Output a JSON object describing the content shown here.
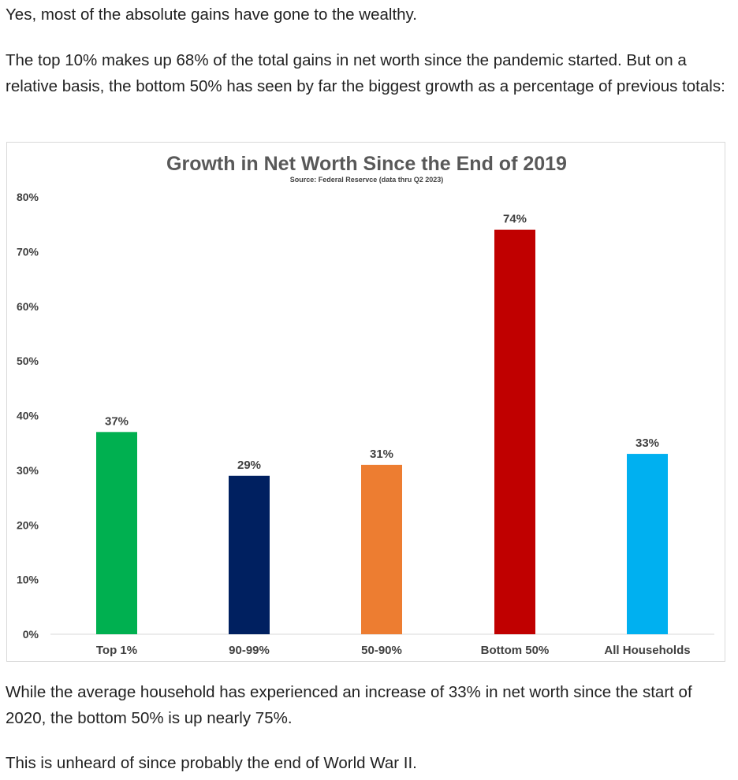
{
  "article": {
    "p1": "Yes, most of the absolute gains have gone to the wealthy.",
    "p2": "The top 10% makes up 68% of the total gains in net worth since the pandemic started. But on a relative basis, the bottom 50% has seen by far the biggest growth as a percentage of previous totals:",
    "p3": "While the average household has experienced an increase of 33% in net worth since the start of 2020, the bottom 50% is up nearly 75%.",
    "p4": "This is unheard of since probably the end of World War II."
  },
  "chart_data": {
    "type": "bar",
    "title": "Growth in Net Worth Since the End of 2019",
    "subtitle": "Source: Federal Reservce (data thru Q2 2023)",
    "xlabel": "",
    "ylabel": "",
    "categories": [
      "Top 1%",
      "90-99%",
      "50-90%",
      "Bottom 50%",
      "All Households"
    ],
    "values": [
      37,
      29,
      31,
      74,
      33
    ],
    "value_labels": [
      "37%",
      "29%",
      "31%",
      "74%",
      "33%"
    ],
    "colors": [
      "#00b050",
      "#002060",
      "#ed7d31",
      "#c00000",
      "#00b0f0"
    ],
    "ylim": [
      0,
      80
    ],
    "yticks": [
      0,
      10,
      20,
      30,
      40,
      50,
      60,
      70,
      80
    ],
    "ytick_labels": [
      "0%",
      "10%",
      "20%",
      "30%",
      "40%",
      "50%",
      "60%",
      "70%",
      "80%"
    ],
    "grid": false,
    "legend": "none"
  }
}
